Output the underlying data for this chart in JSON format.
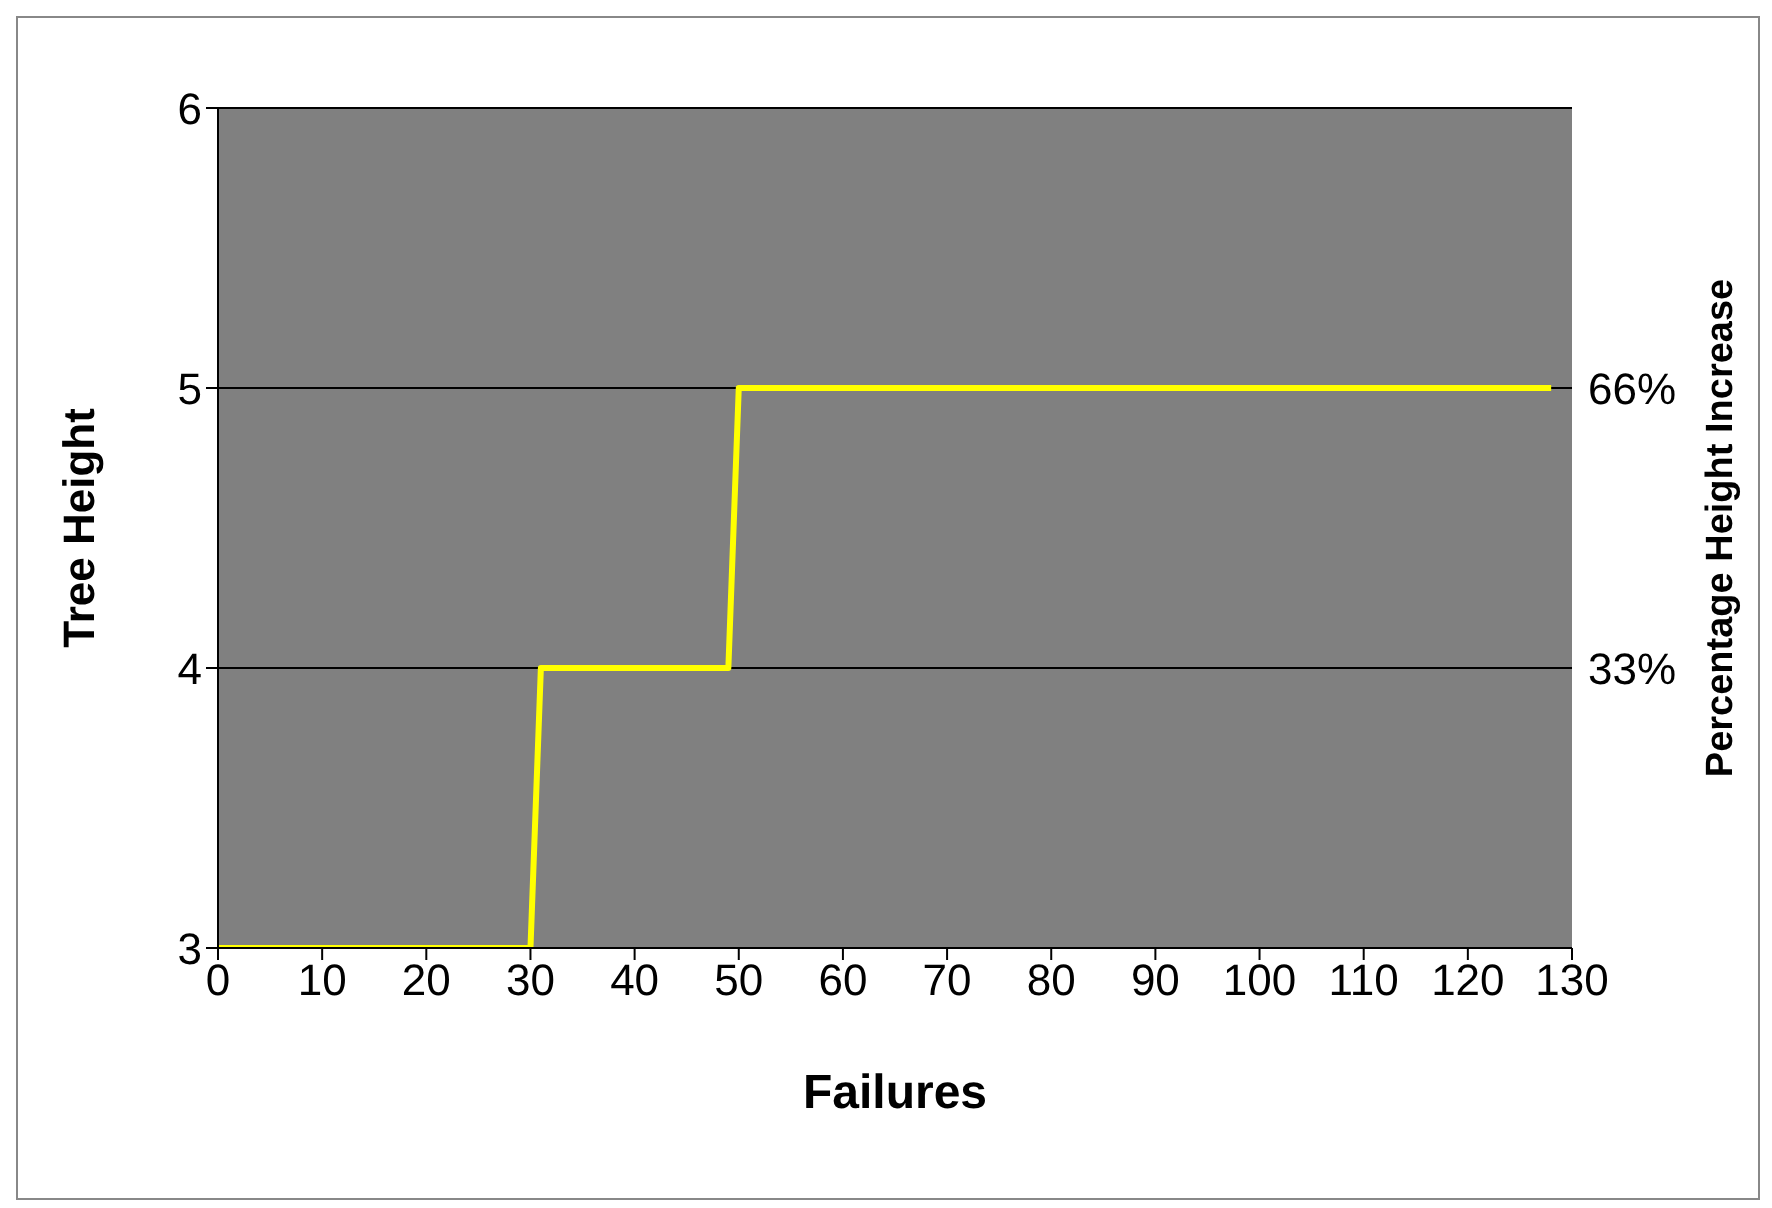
{
  "chart_data": {
    "type": "line",
    "xlabel": "Failures",
    "ylabel": "Tree Height",
    "y2label": "Percentage Height Increase",
    "x": [
      0,
      30,
      31,
      49,
      50,
      128
    ],
    "series": [
      {
        "color": "#ffff00",
        "values": [
          3,
          3,
          4,
          4,
          5,
          5
        ]
      }
    ],
    "xlim": [
      0,
      130
    ],
    "xticks": [
      0,
      10,
      20,
      30,
      40,
      50,
      60,
      70,
      80,
      90,
      100,
      110,
      120,
      130
    ],
    "ylim": [
      3,
      6
    ],
    "yticks": [
      3,
      4,
      5,
      6
    ],
    "y2lim": [
      0,
      99
    ],
    "y2ticks": [
      {
        "value": 33,
        "label": "33%"
      },
      {
        "value": 66,
        "label": "66%"
      }
    ],
    "grid": "y"
  }
}
